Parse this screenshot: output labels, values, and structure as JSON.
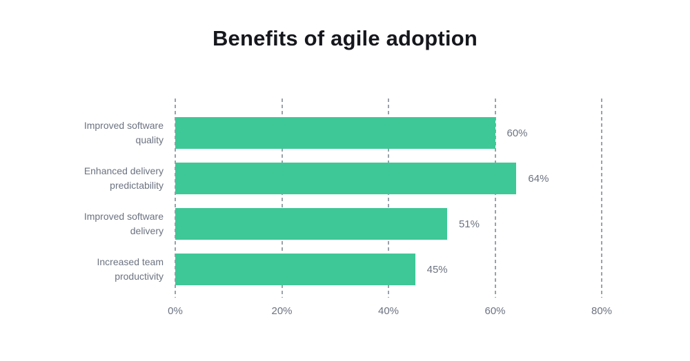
{
  "chart": {
    "title": "Benefits of agile adoption"
  },
  "chart_data": {
    "type": "bar",
    "orientation": "horizontal",
    "title": "Benefits of agile adoption",
    "categories": [
      "Improved software\nquality",
      "Enhanced delivery\npredictability",
      "Improved software\ndelivery",
      "Increased team\nproductivity"
    ],
    "values": [
      60,
      64,
      51,
      45
    ],
    "value_labels": [
      "60%",
      "64%",
      "51%",
      "45%"
    ],
    "x_ticks": [
      "0%",
      "20%",
      "40%",
      "60%",
      "80%"
    ],
    "x_tick_values": [
      0,
      20,
      40,
      60,
      80
    ],
    "xlim": [
      0,
      80
    ],
    "xlabel": "",
    "ylabel": "",
    "grid": "vertical-dashed",
    "legend": "none",
    "bar_color": "#3ec897"
  },
  "colors": {
    "background": "#ffffff",
    "bar": "#3ec897",
    "title": "#16171d",
    "label": "#6b7280",
    "gridline": "#9aa1a9"
  }
}
